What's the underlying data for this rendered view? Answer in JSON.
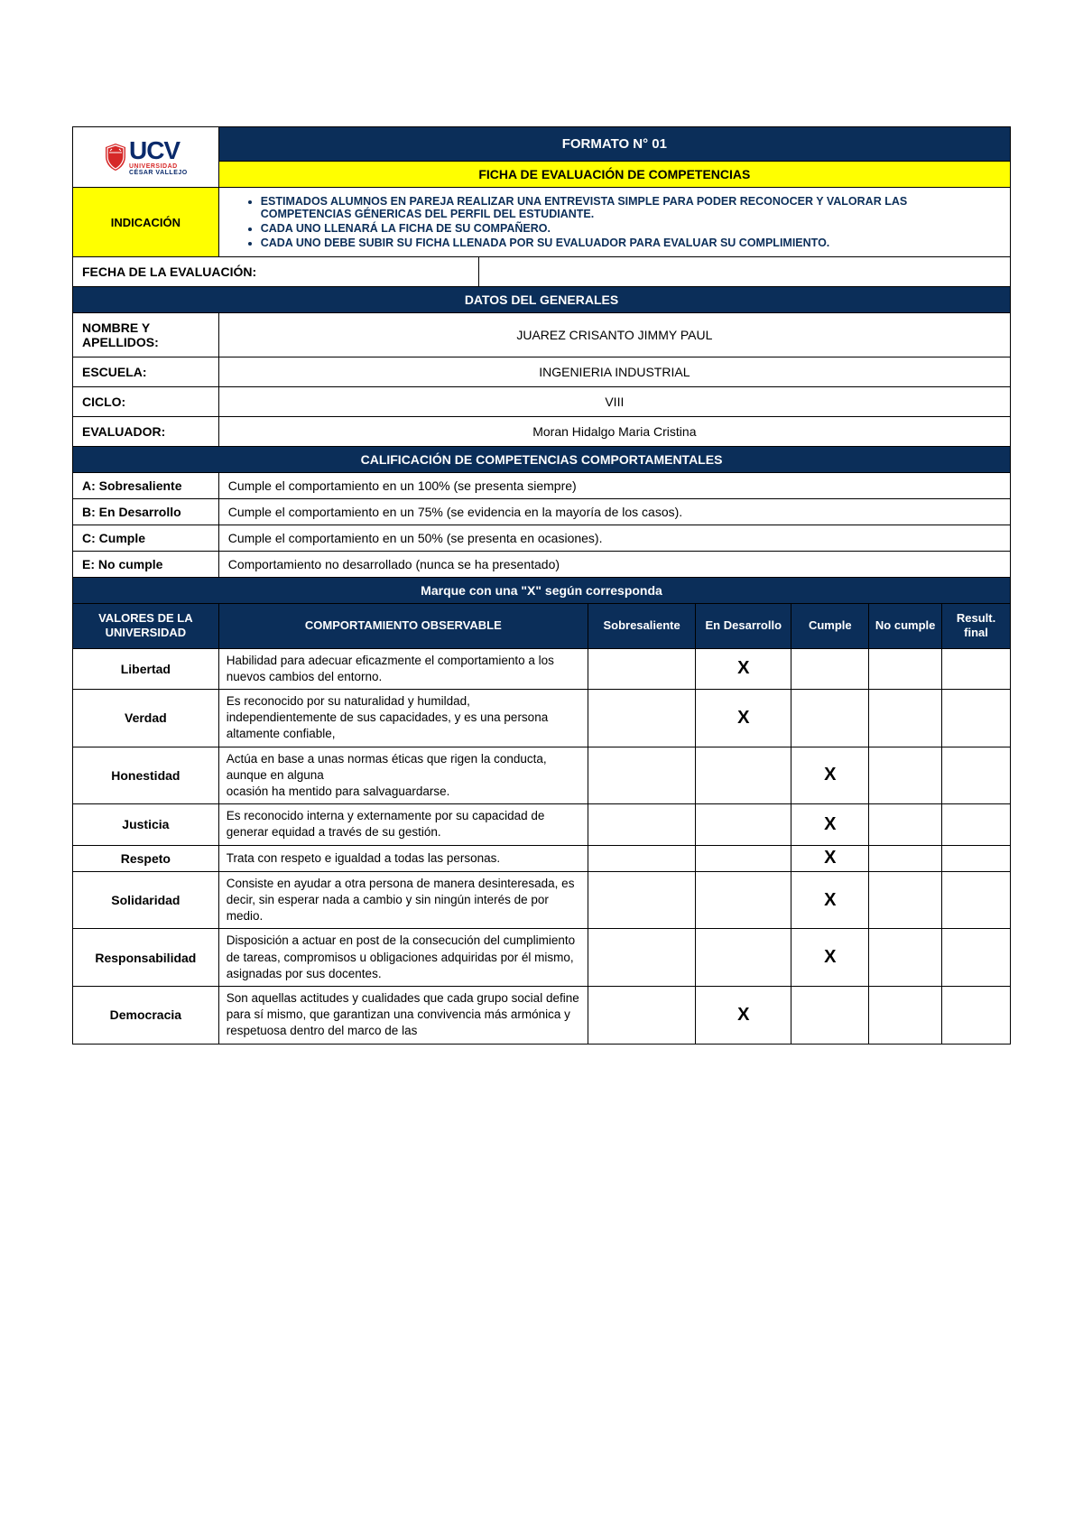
{
  "header": {
    "formato": "FORMATO N° 01",
    "subtitle": "FICHA DE EVALUACIÓN DE COMPETENCIAS",
    "logo_main": "UCV",
    "logo_line1": "UNIVERSIDAD",
    "logo_line2": "CÉSAR VALLEJO"
  },
  "indicacion": {
    "label": "INDICACIÓN",
    "items": [
      "ESTIMADOS ALUMNOS EN PAREJA REALIZAR UNA ENTREVISTA SIMPLE PARA PODER RECONOCER Y VALORAR LAS COMPETENCIAS GÉNERICAS DEL PERFIL DEL ESTUDIANTE.",
      "CADA UNO LLENARÁ LA FICHA DE SU COMPAÑERO.",
      "CADA UNO DEBE SUBIR SU FICHA LLENADA POR SU EVALUADOR PARA EVALUAR SU COMPLIMIENTO."
    ]
  },
  "fecha_label": "FECHA DE LA EVALUACIÓN:",
  "fecha_value": "",
  "datos_title": "DATOS DEL GENERALES",
  "datos": {
    "nombre_lbl": "NOMBRE Y APELLIDOS:",
    "nombre_val": "JUAREZ CRISANTO JIMMY PAUL",
    "escuela_lbl": "ESCUELA:",
    "escuela_val": "INGENIERIA INDUSTRIAL",
    "ciclo_lbl": "CICLO:",
    "ciclo_val": "VIII",
    "evaluador_lbl": "EVALUADOR:",
    "evaluador_val": "Moran Hidalgo Maria Cristina"
  },
  "calif_title": "CALIFICACIÓN DE COMPETENCIAS COMPORTAMENTALES",
  "scale": [
    {
      "code": "A: Sobresaliente",
      "desc": "Cumple el comportamiento en un 100% (se presenta siempre)"
    },
    {
      "code": "B: En Desarrollo",
      "desc": "Cumple el comportamiento en un 75% (se evidencia en la mayoría de los casos)."
    },
    {
      "code": "C: Cumple",
      "desc": "Cumple el comportamiento en un 50% (se presenta en ocasiones)."
    },
    {
      "code": "E: No cumple",
      "desc": "Comportamiento no desarrollado (nunca se ha presentado)"
    }
  ],
  "marque_title": "Marque con una \"X\" según corresponda",
  "cols": {
    "valores": "VALORES DE LA UNIVERSIDAD",
    "comport": "COMPORTAMIENTO OBSERVABLE",
    "sobre": "Sobresaliente",
    "endes": "En Desarrollo",
    "cumple": "Cumple",
    "nocumple": "No cumple",
    "result": "Result. final"
  },
  "rows": [
    {
      "valor": "Libertad",
      "desc": "Habilidad para adecuar eficazmente el comportamiento a los nuevos cambios del entorno.",
      "marks": [
        "",
        "X",
        "",
        "",
        ""
      ]
    },
    {
      "valor": "Verdad",
      "desc": "Es reconocido por su naturalidad y humildad, independientemente de sus capacidades, y es una persona altamente confiable,",
      "marks": [
        "",
        "X",
        "",
        "",
        ""
      ]
    },
    {
      "valor": "Honestidad",
      "desc": "Actúa en base a unas normas éticas que rigen la conducta, aunque en alguna\nocasión ha mentido para salvaguardarse.",
      "marks": [
        "",
        "",
        "X",
        "",
        ""
      ]
    },
    {
      "valor": "Justicia",
      "desc": "Es reconocido interna y externamente por su capacidad de generar equidad a través de su gestión.",
      "marks": [
        "",
        "",
        "X",
        "",
        ""
      ]
    },
    {
      "valor": "Respeto",
      "desc": "Trata con respeto e igualdad a todas las personas.",
      "marks": [
        "",
        "",
        "X",
        "",
        ""
      ]
    },
    {
      "valor": "Solidaridad",
      "desc": "Consiste en ayudar a otra persona de manera desinteresada, es decir, sin esperar nada a cambio y sin ningún interés de por medio.",
      "marks": [
        "",
        "",
        "X",
        "",
        ""
      ]
    },
    {
      "valor": "Responsabilidad",
      "desc": "Disposición a actuar en post de la consecución del cumplimiento de tareas, compromisos u obligaciones adquiridas por él mismo, asignadas por sus docentes.",
      "marks": [
        "",
        "",
        "X",
        "",
        ""
      ]
    },
    {
      "valor": "Democracia",
      "desc": "Son aquellas actitudes y cualidades que cada grupo social define para sí mismo, que garantizan una convivencia más armónica y respetuosa dentro del marco de las",
      "marks": [
        "",
        "X",
        "",
        "",
        ""
      ]
    }
  ],
  "colors": {
    "navy": "#0b2e59",
    "yellow": "#ffff00",
    "logo_blue": "#0a2a6b",
    "logo_red": "#d62828"
  }
}
